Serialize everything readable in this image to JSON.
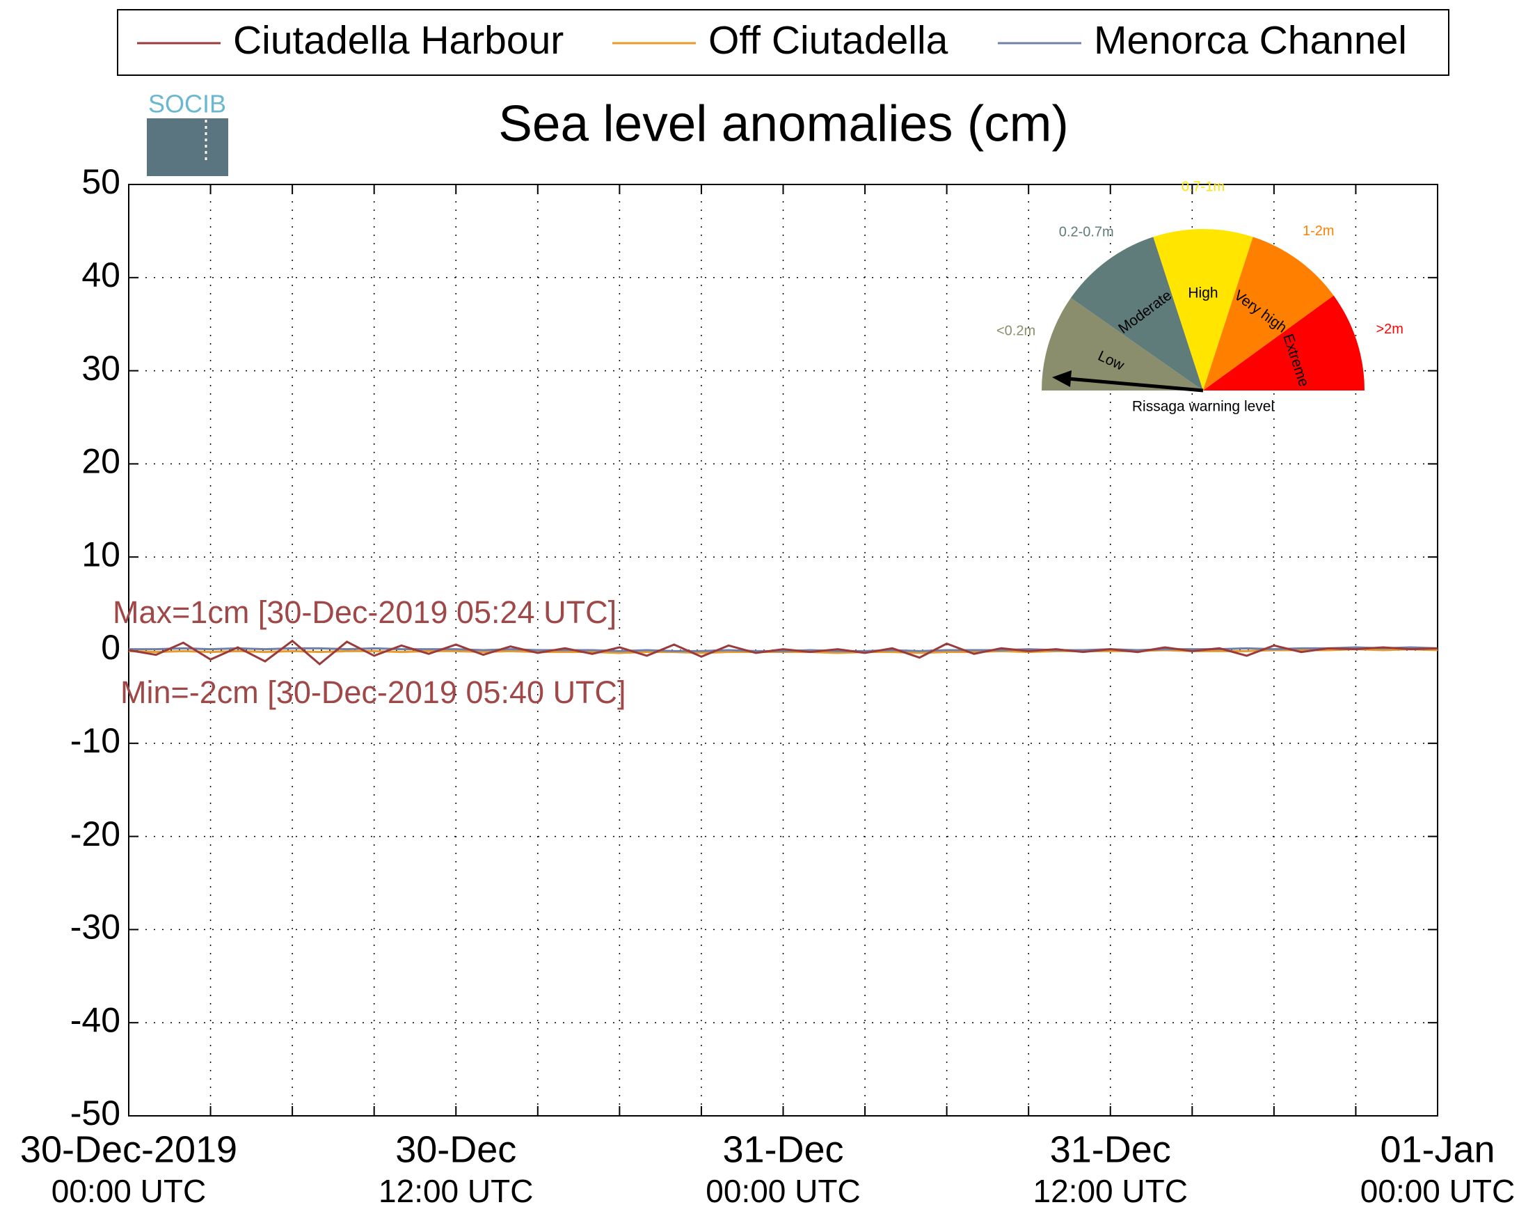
{
  "chart_data": {
    "type": "line",
    "title": "Sea level anomalies (cm)",
    "logo_text": "SOCIB",
    "x": [
      0,
      1,
      2,
      3,
      4,
      5,
      6,
      7,
      8,
      9,
      10,
      11,
      12,
      13,
      14,
      15,
      16,
      17,
      18,
      19,
      20,
      21,
      22,
      23,
      24,
      25,
      26,
      27,
      28,
      29,
      30,
      31,
      32,
      33,
      34,
      35,
      36,
      37,
      38,
      39,
      40,
      41,
      42,
      43,
      44,
      45,
      46,
      47,
      48
    ],
    "series": [
      {
        "name": "Ciutadella Harbour",
        "color": "#9b3a3a",
        "values": [
          0,
          -0.5,
          0.8,
          -1,
          0.3,
          -1.2,
          1,
          -1.5,
          0.9,
          -0.6,
          0.5,
          -0.4,
          0.6,
          -0.5,
          0.4,
          -0.3,
          0.2,
          -0.4,
          0.3,
          -0.6,
          0.6,
          -0.7,
          0.5,
          -0.3,
          0.1,
          -0.2,
          0.1,
          -0.3,
          0.2,
          -0.8,
          0.7,
          -0.4,
          0.2,
          -0.1,
          0.1,
          -0.2,
          0.1,
          -0.2,
          0.3,
          -0.1,
          0.2,
          -0.6,
          0.5,
          -0.2,
          0.2,
          0.1,
          0.3,
          0.1,
          0.2
        ]
      },
      {
        "name": "Off Ciutadella",
        "color": "#e89a2c",
        "values": [
          -0.1,
          -0.2,
          -0.1,
          -0.2,
          -0.1,
          -0.2,
          -0.1,
          -0.2,
          -0.1,
          -0.1,
          -0.2,
          -0.1,
          -0.1,
          -0.2,
          -0.1,
          -0.2,
          -0.2,
          -0.2,
          -0.3,
          -0.2,
          -0.2,
          -0.3,
          -0.2,
          -0.2,
          -0.2,
          -0.2,
          -0.3,
          -0.2,
          -0.2,
          -0.3,
          -0.2,
          -0.2,
          -0.1,
          -0.2,
          -0.1,
          -0.1,
          -0.1,
          -0.1,
          0,
          -0.1,
          -0.1,
          -0.1,
          0,
          0,
          0,
          0.1,
          0,
          0.1,
          0
        ]
      },
      {
        "name": "Menorca Channel",
        "color": "#7080a8",
        "values": [
          0.1,
          0.1,
          0.2,
          0.1,
          0.2,
          0.1,
          0.2,
          0.2,
          0.1,
          0.2,
          0.1,
          0.1,
          0.1,
          0,
          0.1,
          0,
          0,
          0,
          -0.1,
          0,
          -0.1,
          -0.1,
          0,
          -0.1,
          -0.1,
          0,
          -0.1,
          -0.1,
          0,
          -0.1,
          0,
          0,
          0,
          0.1,
          0,
          0,
          0.1,
          0,
          0.1,
          0.1,
          0.1,
          0.2,
          0.1,
          0.2,
          0.2,
          0.3,
          0.2,
          0.3,
          0.2
        ]
      }
    ],
    "xlim": [
      0,
      48
    ],
    "xticks": [
      {
        "value": 0,
        "label": [
          "30-Dec-2019",
          "00:00 UTC"
        ]
      },
      {
        "value": 3,
        "label": null
      },
      {
        "value": 6,
        "label": null
      },
      {
        "value": 9,
        "label": null
      },
      {
        "value": 12,
        "label": [
          "30-Dec",
          "12:00 UTC"
        ]
      },
      {
        "value": 15,
        "label": null
      },
      {
        "value": 18,
        "label": null
      },
      {
        "value": 21,
        "label": null
      },
      {
        "value": 24,
        "label": [
          "31-Dec",
          "00:00 UTC"
        ]
      },
      {
        "value": 27,
        "label": null
      },
      {
        "value": 30,
        "label": null
      },
      {
        "value": 33,
        "label": null
      },
      {
        "value": 36,
        "label": [
          "31-Dec",
          "12:00 UTC"
        ]
      },
      {
        "value": 39,
        "label": null
      },
      {
        "value": 42,
        "label": null
      },
      {
        "value": 45,
        "label": null
      },
      {
        "value": 48,
        "label": [
          "01-Jan",
          "00:00 UTC"
        ]
      }
    ],
    "ylim": [
      -50,
      50
    ],
    "yticks": [
      -50,
      -40,
      -30,
      -20,
      -10,
      0,
      10,
      20,
      30,
      40,
      50
    ],
    "grid": true,
    "annotations": [
      {
        "text": "Max=1cm [30-Dec-2019 05:24 UTC]",
        "color": "#a04848"
      },
      {
        "text": "Min=-2cm [30-Dec-2019 05:40 UTC]",
        "color": "#a04848"
      }
    ],
    "inset": {
      "title": "Rissaga warning level",
      "levels": [
        {
          "name": "Low",
          "range": "<0.2m",
          "color": "#8b8e6c"
        },
        {
          "name": "Moderate",
          "range": "0.2-0.7m",
          "color": "#5f7b7a"
        },
        {
          "name": "High",
          "range": "0.7-1m",
          "color": "#ffe500"
        },
        {
          "name": "Very high",
          "range": "1-2m",
          "color": "#ff8000"
        },
        {
          "name": "Extreme",
          "range": ">2m",
          "color": "#ff0000"
        }
      ]
    }
  }
}
